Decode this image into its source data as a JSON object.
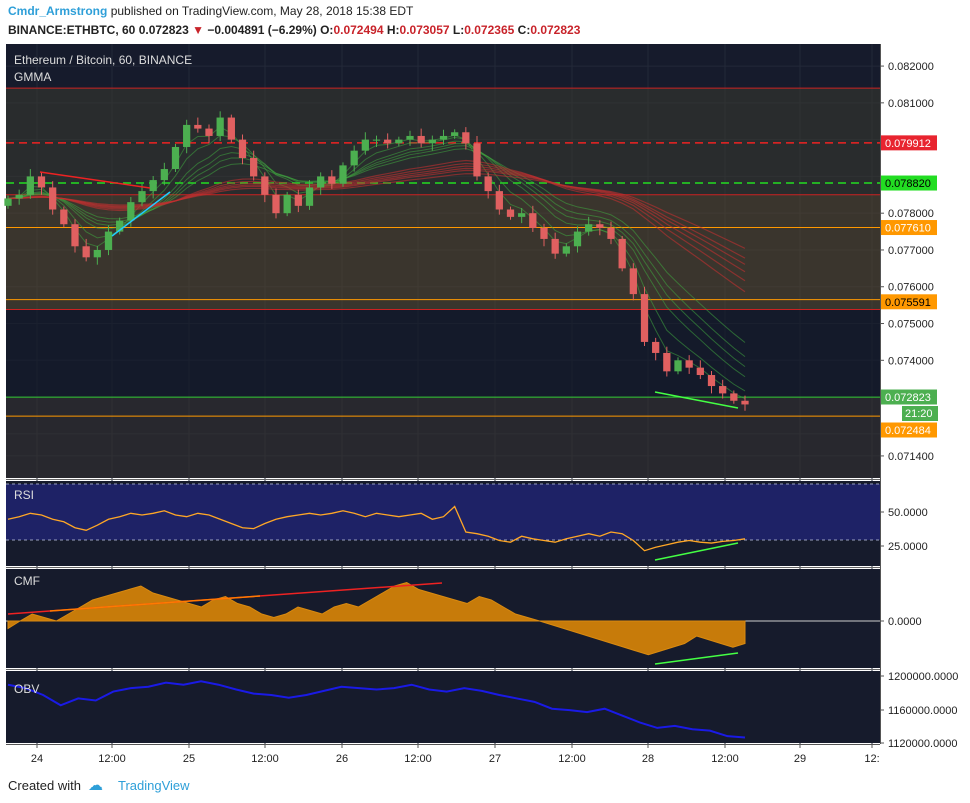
{
  "header": {
    "author": "Cmdr_Armstrong",
    "published_text": "published on TradingView.com, May 28, 2018 15:38 EDT",
    "symbol": "BINANCE:ETHBTC, 60",
    "last": "0.072823",
    "change": "−0.004891 (−6.29%)",
    "ohlc": {
      "O": "0.072494",
      "H": "0.073057",
      "L": "0.072365",
      "C": "0.072823"
    }
  },
  "main_panel": {
    "title": "Ethereum / Bitcoin, 60, BINANCE",
    "indicator": "GMMA",
    "y_ticks": [
      "0.082000",
      "0.081000",
      "0.078000",
      "0.077000",
      "0.076000",
      "0.075000",
      "0.074000",
      "0.071400"
    ],
    "price_tags": [
      {
        "label": "0.079912",
        "value": 0.079912,
        "color": "#e8242f",
        "text": "#ffffff"
      },
      {
        "label": "0.078820",
        "value": 0.07882,
        "color": "#22dd22",
        "text": "#000000"
      },
      {
        "label": "0.077610",
        "value": 0.07761,
        "color": "#ff9800",
        "text": "#ffffff"
      },
      {
        "label": "0.075591",
        "value": 0.075591,
        "color": "#ff9800",
        "text": "#000000"
      },
      {
        "label": "0.072823",
        "value": 0.072823,
        "color": "#4caf50",
        "text": "#ffffff"
      },
      {
        "label": "0.072484",
        "value": 0.072484,
        "color": "#ff9800",
        "text": "#ffffff"
      }
    ],
    "countdown": "21:20"
  },
  "rsi_panel": {
    "title": "RSI",
    "y_ticks": [
      "50.0000",
      "25.0000"
    ]
  },
  "cmf_panel": {
    "title": "CMF",
    "y_ticks": [
      "0.0000"
    ]
  },
  "obv_panel": {
    "title": "OBV",
    "y_ticks": [
      "1200000.0000",
      "1160000.0000",
      "1120000.0000"
    ]
  },
  "x_axis": {
    "ticks": [
      "24",
      "12:00",
      "25",
      "12:00",
      "26",
      "12:00",
      "27",
      "12:00",
      "28",
      "12:00",
      "29",
      "12:"
    ]
  },
  "footer": {
    "created_with": "Created with",
    "brand": "TradingView"
  },
  "colors": {
    "background": "#161b2c",
    "grid": "#252a3a",
    "bull": "#4caf50",
    "bear": "#e06060",
    "rsi": "#ffa726",
    "cmf": "#c77b0a",
    "obv": "#1a1ae6"
  },
  "chart_data": [
    {
      "type": "candlestick",
      "title": "Ethereum / Bitcoin, 60, BINANCE",
      "ylim": [
        0.0708,
        0.0826
      ],
      "x_ticks": [
        "24",
        "12:00",
        "25",
        "12:00",
        "26",
        "12:00",
        "27",
        "12:00",
        "28",
        "12:00",
        "29",
        "12:"
      ],
      "horizontal_levels": [
        0.0814,
        0.079912,
        0.07882,
        0.0785,
        0.07761,
        0.07565,
        0.075591,
        0.07538,
        0.073,
        0.072484
      ],
      "close_path": [
        0.0784,
        0.0785,
        0.079,
        0.0787,
        0.0781,
        0.0777,
        0.0771,
        0.0768,
        0.077,
        0.0775,
        0.0778,
        0.0783,
        0.0786,
        0.0789,
        0.0792,
        0.0798,
        0.0804,
        0.0803,
        0.0801,
        0.0806,
        0.08,
        0.0795,
        0.079,
        0.0785,
        0.078,
        0.0785,
        0.0782,
        0.0787,
        0.079,
        0.0788,
        0.0793,
        0.0797,
        0.08,
        0.08,
        0.0799,
        0.08,
        0.0801,
        0.0799,
        0.08,
        0.0801,
        0.0802,
        0.0799,
        0.079,
        0.0786,
        0.0781,
        0.0779,
        0.078,
        0.0776,
        0.0773,
        0.0769,
        0.0771,
        0.0775,
        0.0777,
        0.0776,
        0.0773,
        0.0765,
        0.0758,
        0.0745,
        0.0742,
        0.0737,
        0.074,
        0.0738,
        0.0736,
        0.0733,
        0.0731,
        0.0729,
        0.0728
      ]
    },
    {
      "type": "line",
      "name": "RSI",
      "ylim": [
        0,
        100
      ],
      "levels": [
        70,
        30
      ],
      "values": [
        55,
        58,
        62,
        60,
        55,
        52,
        45,
        42,
        48,
        55,
        58,
        62,
        60,
        62,
        65,
        60,
        58,
        62,
        60,
        55,
        50,
        45,
        44,
        50,
        55,
        58,
        60,
        62,
        60,
        62,
        65,
        62,
        58,
        62,
        60,
        58,
        60,
        62,
        55,
        58,
        70,
        40,
        38,
        35,
        30,
        28,
        35,
        32,
        30,
        28,
        32,
        35,
        38,
        35,
        40,
        38,
        30,
        18,
        22,
        25,
        28,
        30,
        28,
        27,
        29,
        30,
        32
      ]
    },
    {
      "type": "area",
      "name": "CMF",
      "ylim": [
        -0.6,
        0.7
      ],
      "values": [
        -0.1,
        0.0,
        0.1,
        0.05,
        0.0,
        0.1,
        0.2,
        0.3,
        0.35,
        0.4,
        0.45,
        0.5,
        0.4,
        0.35,
        0.3,
        0.25,
        0.2,
        0.3,
        0.35,
        0.25,
        0.2,
        0.1,
        0.05,
        0.1,
        0.2,
        0.15,
        0.1,
        0.2,
        0.25,
        0.2,
        0.3,
        0.4,
        0.5,
        0.55,
        0.45,
        0.4,
        0.35,
        0.3,
        0.25,
        0.35,
        0.3,
        0.2,
        0.1,
        0.05,
        0.0,
        -0.05,
        -0.1,
        -0.15,
        -0.2,
        -0.25,
        -0.3,
        -0.35,
        -0.4,
        -0.45,
        -0.4,
        -0.35,
        -0.3,
        -0.2,
        -0.25,
        -0.3,
        -0.35,
        -0.3
      ]
    },
    {
      "type": "line",
      "name": "OBV",
      "ylim": [
        1110000,
        1215000
      ],
      "values": [
        1195000,
        1190000,
        1180000,
        1165000,
        1175000,
        1172000,
        1185000,
        1190000,
        1192000,
        1198000,
        1195000,
        1200000,
        1195000,
        1188000,
        1182000,
        1180000,
        1176000,
        1180000,
        1186000,
        1192000,
        1190000,
        1188000,
        1190000,
        1195000,
        1188000,
        1185000,
        1190000,
        1186000,
        1180000,
        1175000,
        1170000,
        1160000,
        1158000,
        1155000,
        1160000,
        1150000,
        1140000,
        1132000,
        1135000,
        1130000,
        1128000,
        1120000,
        1118000
      ]
    }
  ]
}
